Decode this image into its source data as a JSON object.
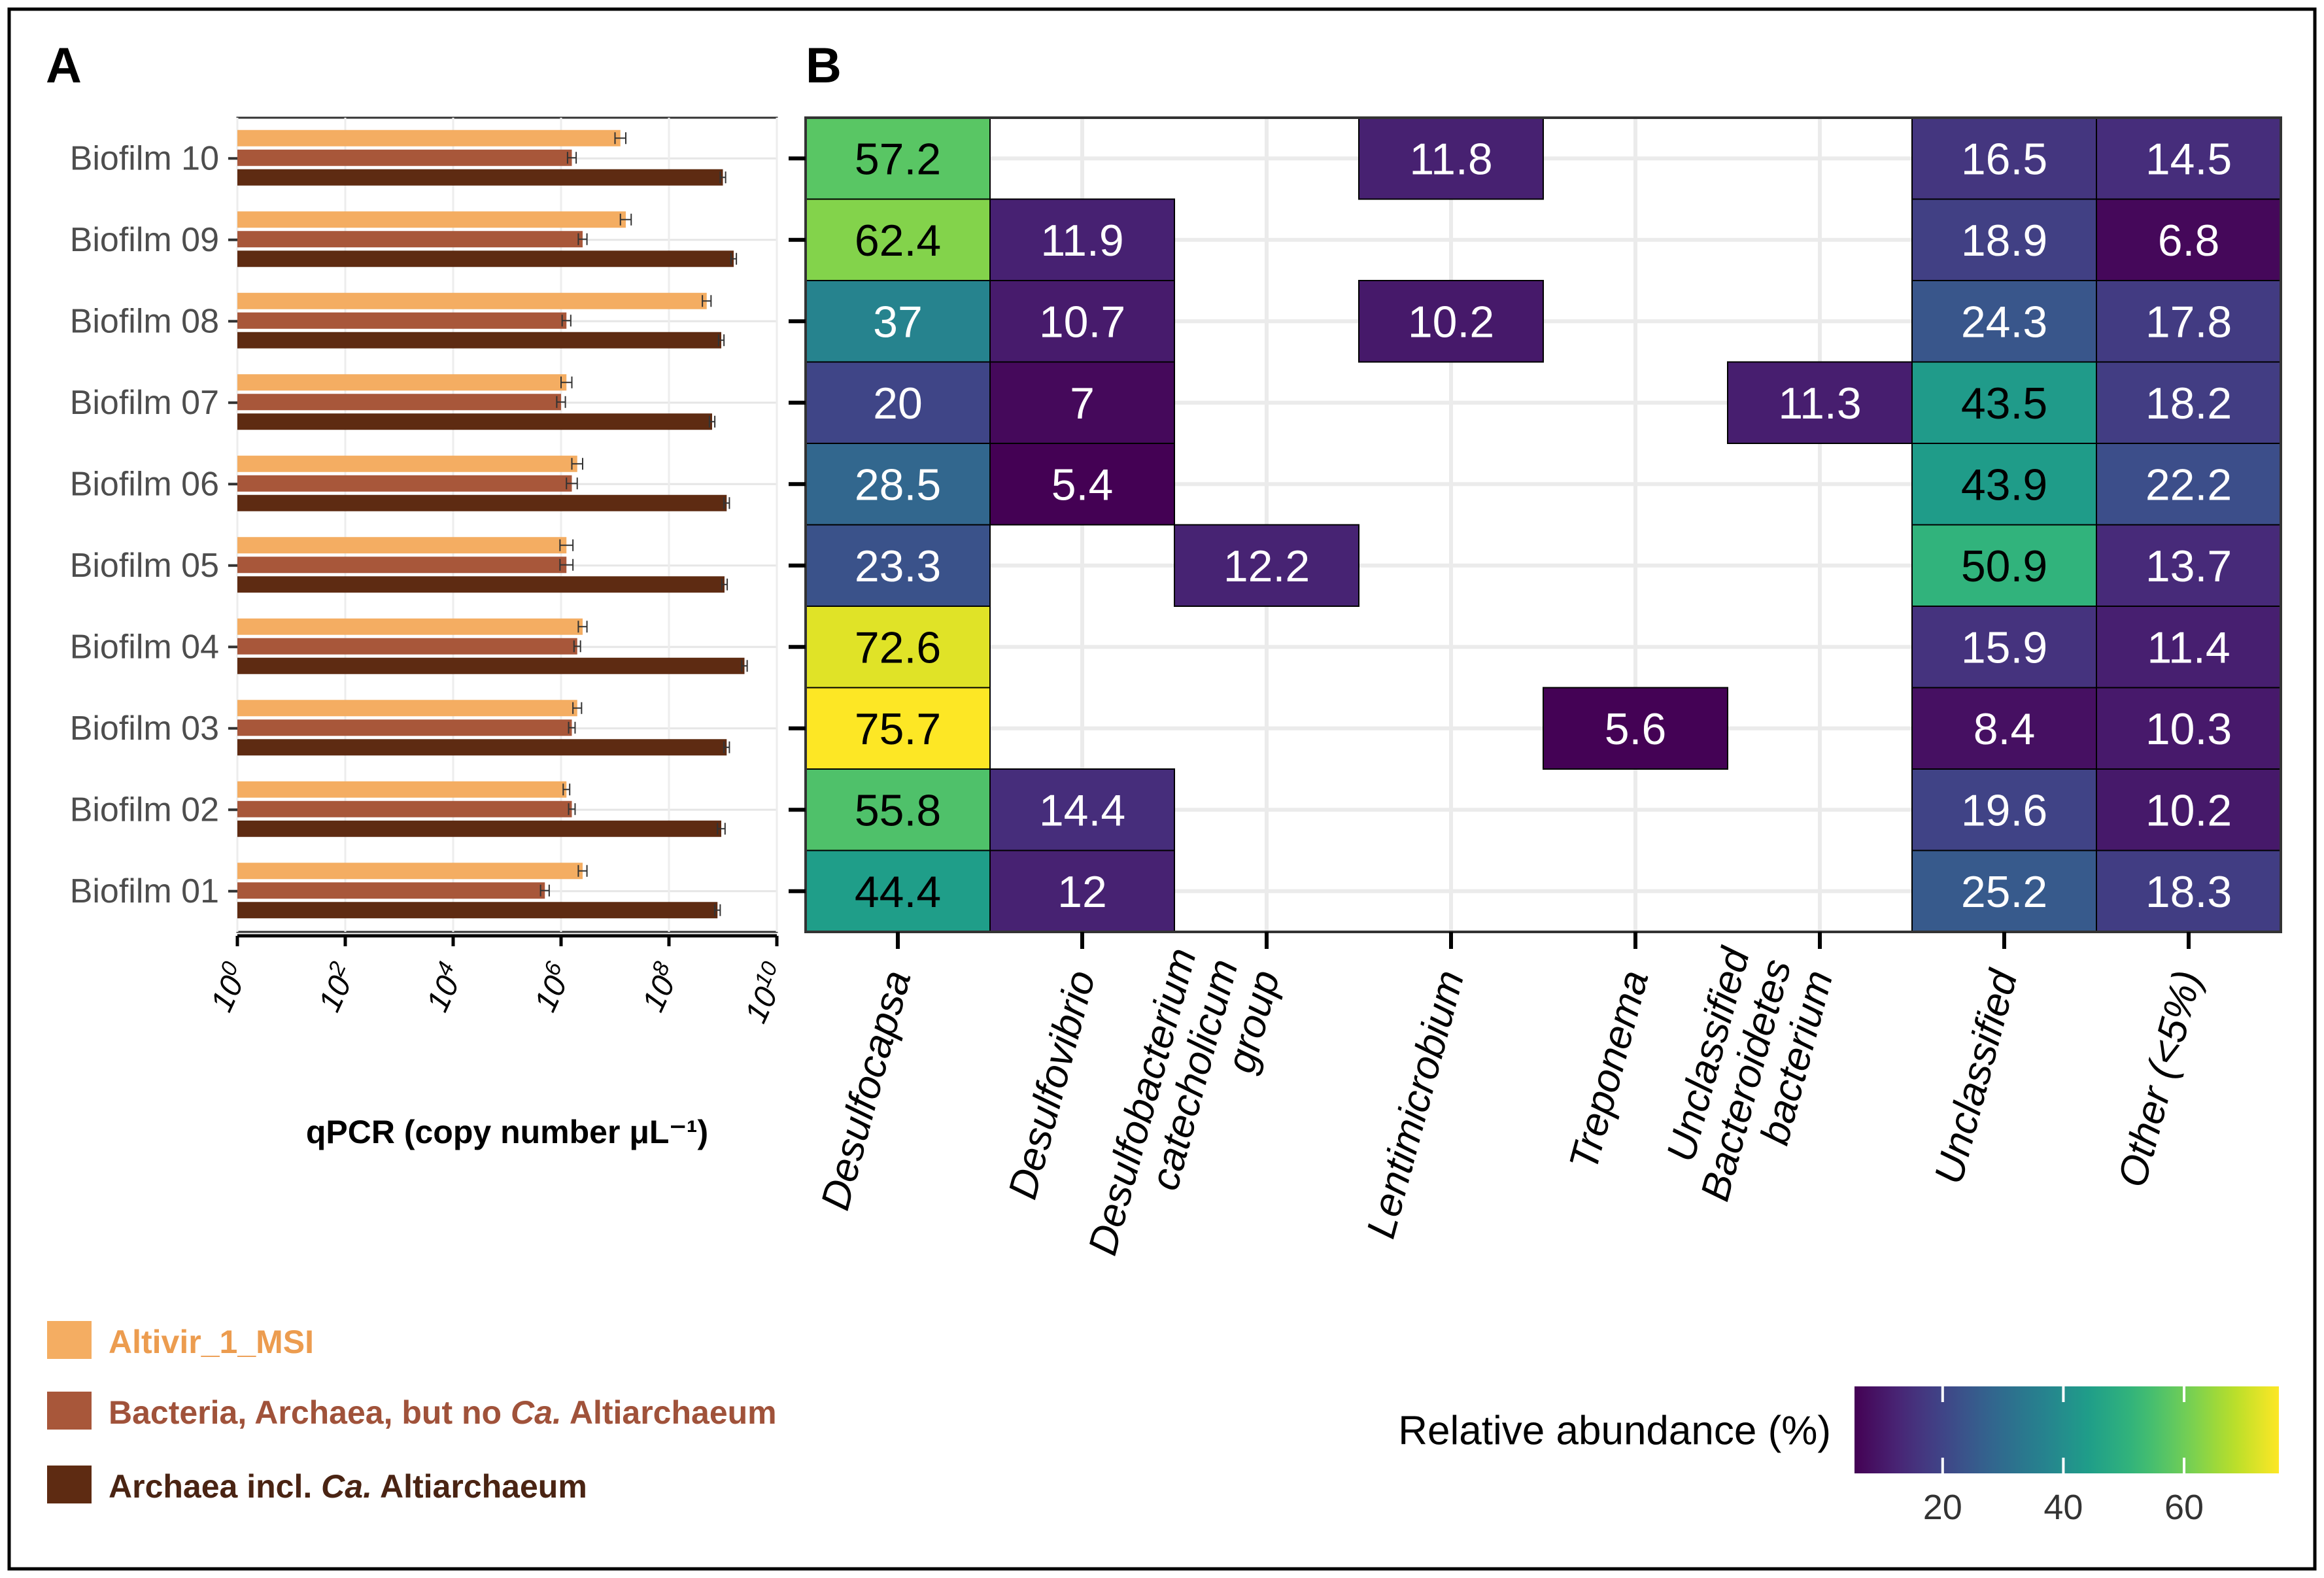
{
  "panel_labels": {
    "a": "A",
    "b": "B"
  },
  "colors": {
    "altivir": "#F4AD62",
    "bacteria": "#A8573A",
    "archaea": "#5E2B12",
    "legend_altivir_text": "#EC9C4F",
    "legend_bacteria_text": "#A0523A",
    "legend_archaea_text": "#4A2413"
  },
  "chart_data": [
    {
      "type": "bar",
      "orientation": "horizontal",
      "title": "A",
      "xlabel": "qPCR (copy number μL⁻¹)",
      "x_scale": "log10",
      "xlim_log10": [
        0,
        10
      ],
      "x_ticks": [
        {
          "base": "10",
          "exp": "0"
        },
        {
          "base": "10",
          "exp": "2"
        },
        {
          "base": "10",
          "exp": "4"
        },
        {
          "base": "10",
          "exp": "6"
        },
        {
          "base": "10",
          "exp": "8"
        },
        {
          "base": "10",
          "exp": "10"
        }
      ],
      "categories": [
        "Biofilm 10",
        "Biofilm 09",
        "Biofilm 08",
        "Biofilm 07",
        "Biofilm 06",
        "Biofilm 05",
        "Biofilm 04",
        "Biofilm 03",
        "Biofilm 02",
        "Biofilm 01"
      ],
      "series": [
        {
          "name": "Altivir_1_MSI",
          "color_key": "altivir",
          "log10_values": [
            7.1,
            7.2,
            8.7,
            6.1,
            6.3,
            6.1,
            6.4,
            6.3,
            6.1,
            6.4
          ],
          "log10_error": [
            0.1,
            0.1,
            0.08,
            0.1,
            0.1,
            0.12,
            0.08,
            0.08,
            0.06,
            0.08
          ]
        },
        {
          "name": "Bacteria, Archaea, but no Ca. Altiarchaeum",
          "color_key": "bacteria",
          "log10_values": [
            6.2,
            6.4,
            6.1,
            6.0,
            6.2,
            6.1,
            6.3,
            6.2,
            6.2,
            5.7
          ],
          "log10_error": [
            0.08,
            0.08,
            0.08,
            0.08,
            0.1,
            0.12,
            0.06,
            0.06,
            0.06,
            0.08
          ]
        },
        {
          "name": "Archaea incl. Ca. Altiarchaeum",
          "color_key": "archaea",
          "log10_values": [
            9.0,
            9.2,
            8.97,
            8.8,
            9.07,
            9.03,
            9.4,
            9.07,
            8.97,
            8.9
          ],
          "log10_error": [
            0.05,
            0.05,
            0.05,
            0.05,
            0.05,
            0.05,
            0.05,
            0.05,
            0.07,
            0.05
          ]
        }
      ],
      "legend": {
        "placement": "bottom-left",
        "items": [
          {
            "color_key": "altivir",
            "text_key": "legend_altivir_text",
            "parts": [
              {
                "text": "Altivir_1_MSI",
                "italic": false
              }
            ]
          },
          {
            "color_key": "bacteria",
            "text_key": "legend_bacteria_text",
            "parts": [
              {
                "text": "Bacteria, Archaea, but no ",
                "italic": false
              },
              {
                "text": "Ca.",
                "italic": true
              },
              {
                "text": " Altiarchaeum",
                "italic": false
              }
            ]
          },
          {
            "color_key": "archaea",
            "text_key": "legend_archaea_text",
            "parts": [
              {
                "text": "Archaea incl. ",
                "italic": false
              },
              {
                "text": "Ca.",
                "italic": true
              },
              {
                "text": " Altiarchaeum",
                "italic": false
              }
            ]
          }
        ]
      }
    },
    {
      "type": "heatmap",
      "title": "B",
      "x_categories": [
        [
          "Desulfocapsa"
        ],
        [
          "Desulfovibrio"
        ],
        [
          "Desulfobacterium",
          "catecholicum",
          "group"
        ],
        [
          "Lentimicrobium"
        ],
        [
          "Treponema"
        ],
        [
          "Unclassified",
          "Bacteroidetes",
          "bacterium"
        ],
        [
          "Unclassified"
        ],
        [
          "Other (<5%)"
        ]
      ],
      "y_categories": [
        "Biofilm 10",
        "Biofilm 09",
        "Biofilm 08",
        "Biofilm 07",
        "Biofilm 06",
        "Biofilm 05",
        "Biofilm 04",
        "Biofilm 03",
        "Biofilm 02",
        "Biofilm 01"
      ],
      "cells": [
        [
          {
            "value": 57.2,
            "label": "57.2"
          },
          null,
          null,
          {
            "value": 11.8,
            "label": "11.8"
          },
          null,
          null,
          {
            "value": 16.5,
            "label": "16.5"
          },
          {
            "value": 14.5,
            "label": "14.5"
          }
        ],
        [
          {
            "value": 62.4,
            "label": "62.4"
          },
          {
            "value": 11.9,
            "label": "11.9"
          },
          null,
          null,
          null,
          null,
          {
            "value": 18.9,
            "label": "18.9"
          },
          {
            "value": 6.8,
            "label": "6.8"
          }
        ],
        [
          {
            "value": 37,
            "label": "37"
          },
          {
            "value": 10.7,
            "label": "10.7"
          },
          null,
          {
            "value": 10.2,
            "label": "10.2"
          },
          null,
          null,
          {
            "value": 24.3,
            "label": "24.3"
          },
          {
            "value": 17.8,
            "label": "17.8"
          }
        ],
        [
          {
            "value": 20,
            "label": "20"
          },
          {
            "value": 7,
            "label": "7"
          },
          null,
          null,
          null,
          {
            "value": 11.3,
            "label": "11.3"
          },
          {
            "value": 43.5,
            "label": "43.5"
          },
          {
            "value": 18.2,
            "label": "18.2"
          }
        ],
        [
          {
            "value": 28.5,
            "label": "28.5"
          },
          {
            "value": 5.4,
            "label": "5.4"
          },
          null,
          null,
          null,
          null,
          {
            "value": 43.9,
            "label": "43.9"
          },
          {
            "value": 22.2,
            "label": "22.2"
          }
        ],
        [
          {
            "value": 23.3,
            "label": "23.3"
          },
          null,
          {
            "value": 12.2,
            "label": "12.2"
          },
          null,
          null,
          null,
          {
            "value": 50.9,
            "label": "50.9"
          },
          {
            "value": 13.7,
            "label": "13.7"
          }
        ],
        [
          {
            "value": 72.6,
            "label": "72.6"
          },
          null,
          null,
          null,
          null,
          null,
          {
            "value": 15.9,
            "label": "15.9"
          },
          {
            "value": 11.4,
            "label": "11.4"
          }
        ],
        [
          {
            "value": 75.7,
            "label": "75.7"
          },
          null,
          null,
          null,
          {
            "value": 5.6,
            "label": "5.6"
          },
          null,
          {
            "value": 8.4,
            "label": "8.4"
          },
          {
            "value": 10.3,
            "label": "10.3"
          }
        ],
        [
          {
            "value": 55.8,
            "label": "55.8"
          },
          {
            "value": 14.4,
            "label": "14.4"
          },
          null,
          null,
          null,
          null,
          {
            "value": 19.6,
            "label": "19.6"
          },
          {
            "value": 10.2,
            "label": "10.2"
          }
        ],
        [
          {
            "value": 44.4,
            "label": "44.4"
          },
          {
            "value": 12,
            "label": "12"
          },
          null,
          null,
          null,
          null,
          {
            "value": 25.2,
            "label": "25.2"
          },
          {
            "value": 18.3,
            "label": "18.3"
          }
        ]
      ],
      "colorbar": {
        "title": "Relative abundance (%)",
        "scale": "viridis",
        "range": [
          5.4,
          75.7
        ],
        "ticks": [
          "20",
          "40",
          "60"
        ]
      }
    }
  ]
}
